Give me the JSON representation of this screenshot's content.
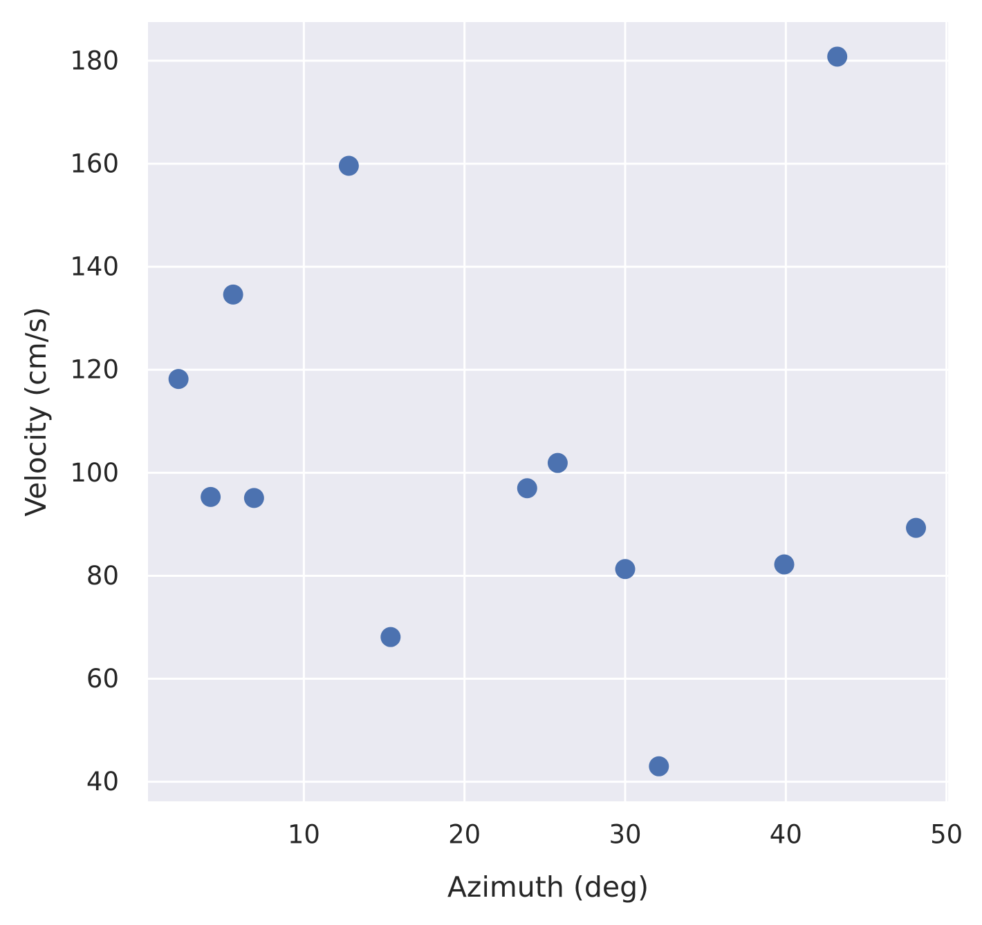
{
  "chart_data": {
    "type": "scatter",
    "title": "",
    "xlabel": "Azimuth (deg)",
    "ylabel": "Velocity (cm/s)",
    "xlim": [
      0.3,
      50.1
    ],
    "ylim": [
      36.2,
      187.5
    ],
    "xticks": [
      10,
      20,
      30,
      40,
      50
    ],
    "yticks": [
      40,
      60,
      80,
      100,
      120,
      140,
      160,
      180
    ],
    "xtick_labels": [
      "10",
      "20",
      "30",
      "40",
      "50"
    ],
    "ytick_labels": [
      "40",
      "60",
      "80",
      "100",
      "120",
      "140",
      "160",
      "180"
    ],
    "grid": true,
    "legend": "none",
    "colors": {
      "background": "#EAEAF2",
      "grid": "#FFFFFF",
      "point": "#4C72B0",
      "text": "#262626"
    },
    "series": [
      {
        "x": [
          2.2,
          4.2,
          5.6,
          6.9,
          12.8,
          15.4,
          23.9,
          25.8,
          30.0,
          32.1,
          39.9,
          43.2,
          48.1
        ],
        "y": [
          118.2,
          95.3,
          134.6,
          95.1,
          159.6,
          68.1,
          97.0,
          101.9,
          81.3,
          43.0,
          82.2,
          180.8,
          89.3
        ]
      }
    ]
  }
}
